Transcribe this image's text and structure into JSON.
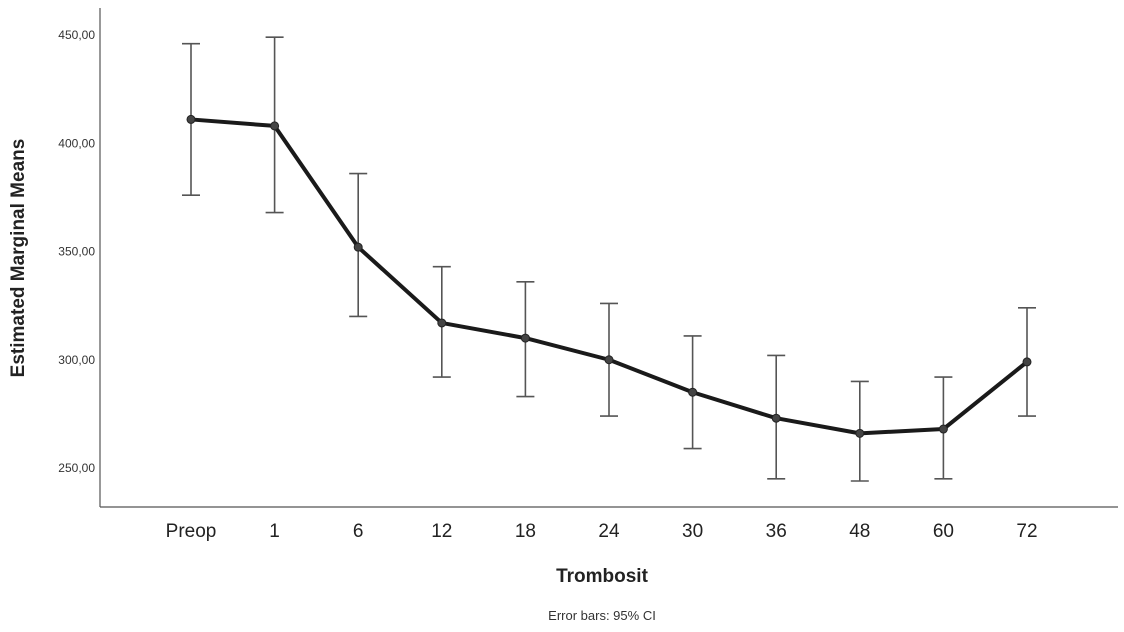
{
  "chart_data": {
    "type": "line",
    "xlabel": "Trombosit",
    "ylabel": "Estimated Marginal Means",
    "footnote": "Error bars: 95% CI",
    "categories": [
      "Preop",
      "1",
      "6",
      "12",
      "18",
      "24",
      "30",
      "36",
      "48",
      "60",
      "72"
    ],
    "yticks": [
      "450,00",
      "400,00",
      "350,00",
      "300,00",
      "250,00"
    ],
    "ylim": [
      233,
      456
    ],
    "grid": false,
    "series": [
      {
        "values": [
          411,
          408,
          352,
          317,
          310,
          300,
          285,
          273,
          266,
          268,
          299
        ],
        "ci_low": [
          376,
          368,
          320,
          292,
          283,
          274,
          259,
          245,
          244,
          245,
          274
        ],
        "ci_high": [
          446,
          449,
          386,
          343,
          336,
          326,
          311,
          302,
          290,
          292,
          324
        ]
      }
    ],
    "colors": {
      "line": "#1a1a1a",
      "errorbar": "#555555",
      "axis": "#555555"
    }
  }
}
